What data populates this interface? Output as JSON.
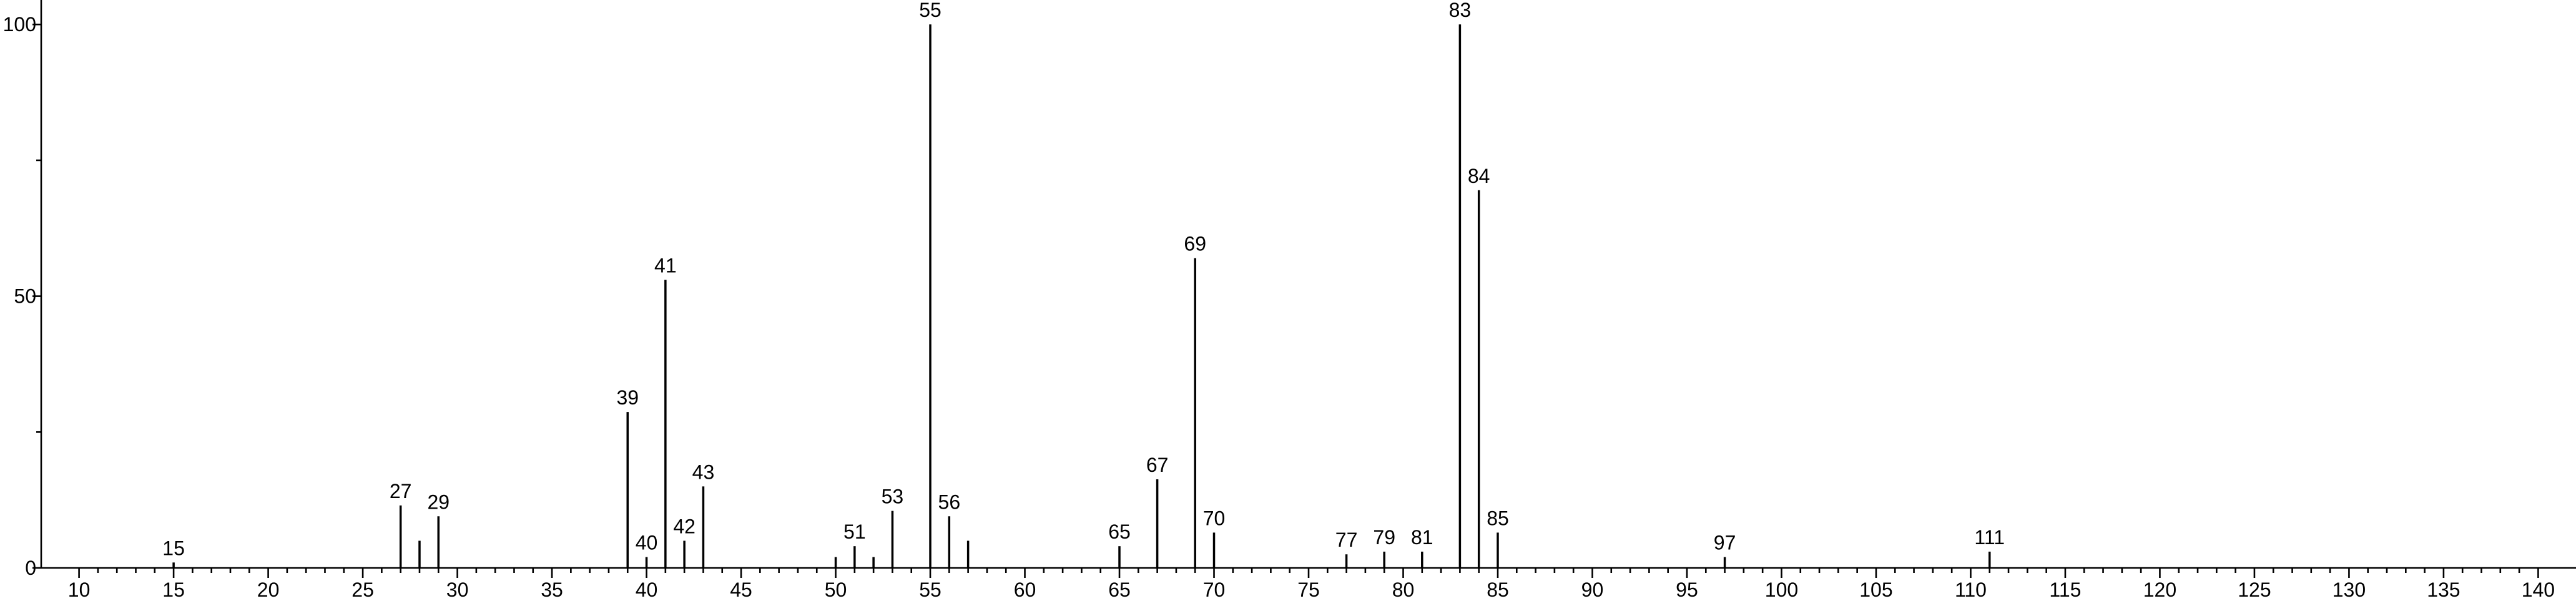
{
  "chart_data": {
    "type": "spectrum",
    "x": [
      15,
      27,
      28,
      29,
      39,
      40,
      41,
      42,
      43,
      50,
      51,
      52,
      53,
      55,
      56,
      57,
      65,
      67,
      69,
      70,
      77,
      79,
      81,
      83,
      84,
      85,
      97,
      111
    ],
    "values": [
      1,
      11.5,
      5,
      9.5,
      28.7,
      2,
      53,
      5,
      15,
      2,
      4,
      2,
      10.5,
      100,
      9.5,
      5,
      4,
      16.3,
      57,
      6.5,
      2.5,
      3,
      3,
      100,
      69.5,
      6.5,
      2,
      3
    ],
    "annotations": [
      15,
      27,
      29,
      39,
      40,
      41,
      42,
      43,
      51,
      53,
      55,
      56,
      65,
      67,
      69,
      70,
      77,
      79,
      81,
      83,
      84,
      85,
      97,
      111
    ],
    "color": "#000000",
    "xlim": [
      8,
      142
    ],
    "ylim": [
      0,
      104.5
    ],
    "xticks": [
      10,
      15,
      20,
      25,
      30,
      35,
      40,
      45,
      50,
      55,
      60,
      65,
      70,
      75,
      80,
      85,
      90,
      95,
      100,
      105,
      110,
      115,
      120,
      125,
      130,
      135,
      140
    ],
    "yticks": [
      0,
      50,
      100
    ]
  }
}
